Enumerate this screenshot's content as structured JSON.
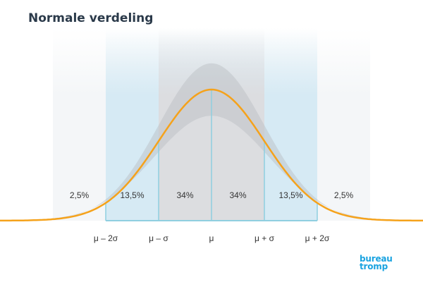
{
  "title": "Normale verdeling",
  "logo": {
    "line1": "bureau",
    "line2": "tromp"
  },
  "colors": {
    "curve": "#f5a21b",
    "band_inner": "#c9cbd0",
    "band_middle": "#d6eaf4",
    "band_outer": "#eef3f6",
    "divider": "#8fcfe0",
    "title": "#2b3a4a",
    "logo": "#1aa3e0"
  },
  "chart_data": {
    "type": "area",
    "title": "Normale verdeling",
    "distribution": "normal",
    "x_range_sigma": [
      -4,
      4
    ],
    "ticks": [
      "μ – 2σ",
      "μ – σ",
      "μ",
      "μ + σ",
      "μ + 2σ"
    ],
    "tick_positions_sigma": [
      -2,
      -1,
      0,
      1,
      2
    ],
    "segments": [
      {
        "from_sigma": -3,
        "to_sigma": -2,
        "label": "2,5%"
      },
      {
        "from_sigma": -2,
        "to_sigma": -1,
        "label": "13,5%"
      },
      {
        "from_sigma": -1,
        "to_sigma": 0,
        "label": "34%"
      },
      {
        "from_sigma": 0,
        "to_sigma": 1,
        "label": "34%"
      },
      {
        "from_sigma": 1,
        "to_sigma": 2,
        "label": "13,5%"
      },
      {
        "from_sigma": 2,
        "to_sigma": 3,
        "label": "2,5%"
      }
    ],
    "grid": false,
    "legend": "none"
  }
}
